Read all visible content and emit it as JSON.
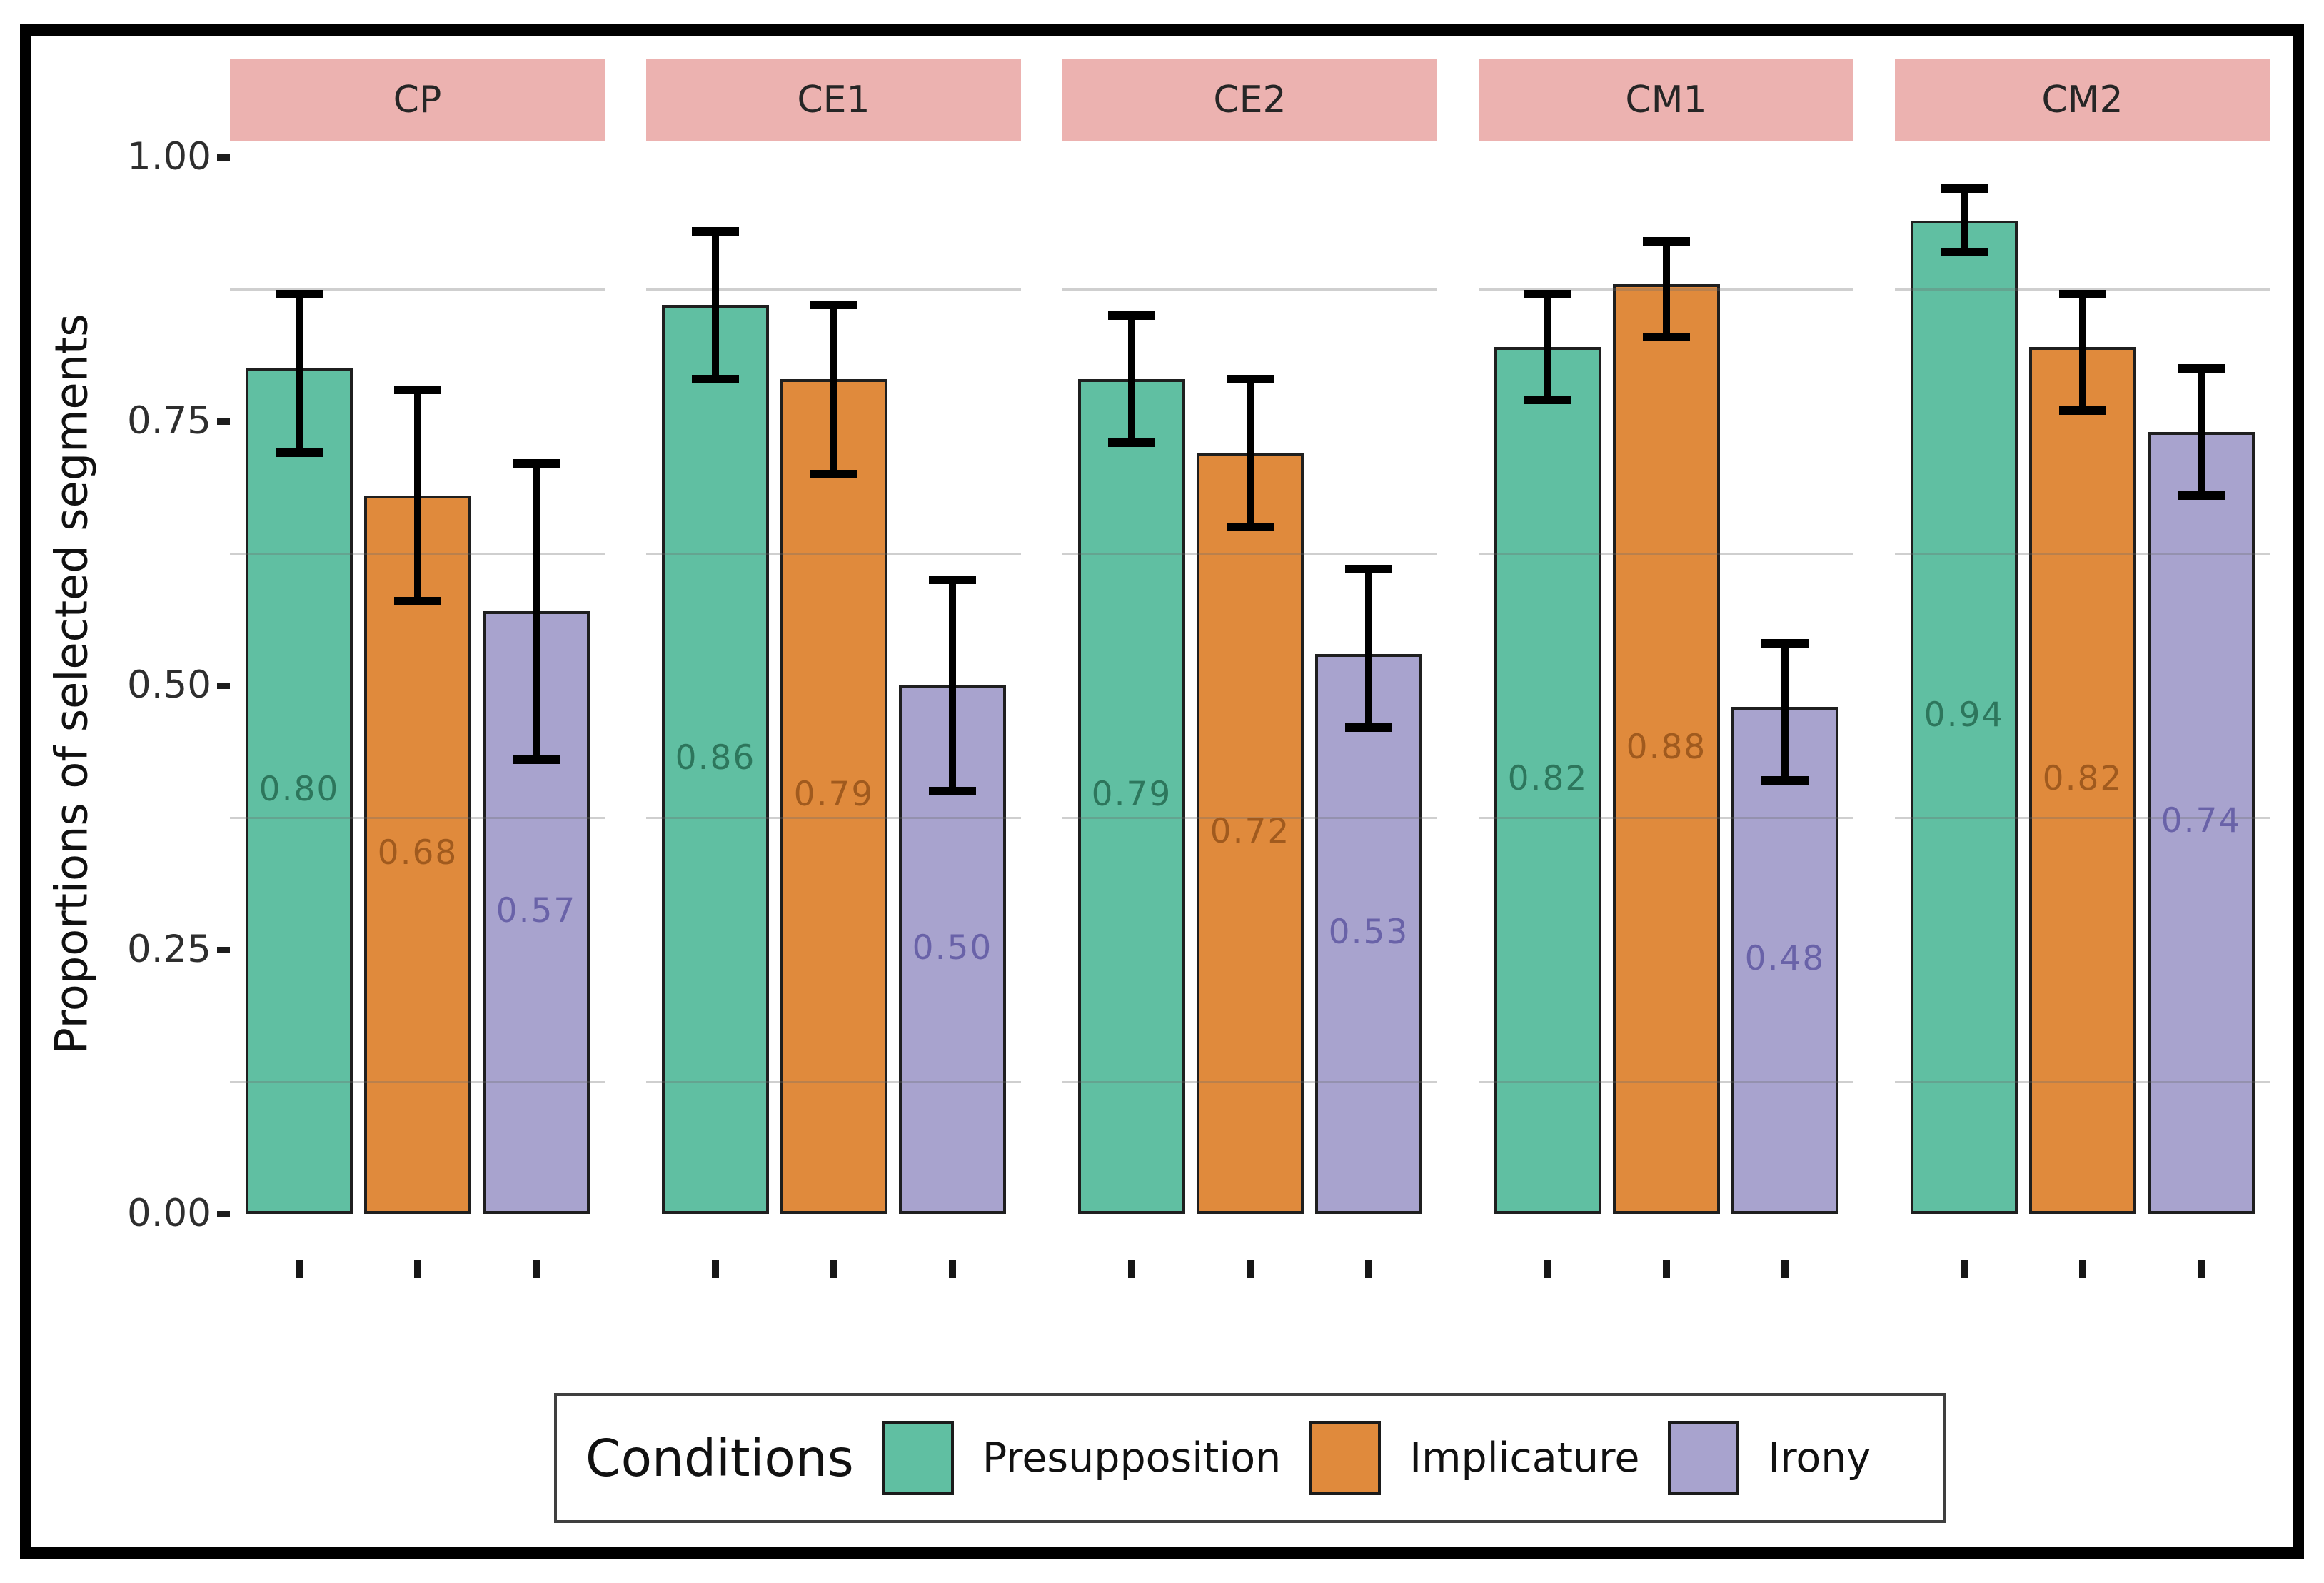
{
  "chart_data": {
    "type": "bar",
    "title": "",
    "ylabel": "Proportions of selected segments",
    "xlabel": "",
    "ylim": [
      0,
      1
    ],
    "grid": "minor-horizontal-only",
    "minor_gridlines": [
      0.125,
      0.375,
      0.625,
      0.875
    ],
    "ytick_values": [
      1.0,
      0.75,
      0.5,
      0.25,
      0.0
    ],
    "ytick_labels": [
      "1.00",
      "0.75",
      "0.50",
      "0.25",
      "0.00"
    ],
    "facet_strip_bg": "#ecb2b0",
    "legend": {
      "title": "Conditions",
      "position": "bottom",
      "entries": [
        "Presupposition",
        "Implicature",
        "Irony"
      ]
    },
    "series_meta": [
      {
        "name": "Presupposition",
        "color": "#60bfa2",
        "label_color": "#2d765c"
      },
      {
        "name": "Implicature",
        "color": "#e08a3c",
        "label_color": "#a05a1e"
      },
      {
        "name": "Irony",
        "color": "#a8a3ce",
        "label_color": "#6962a8"
      }
    ],
    "facets": [
      {
        "name": "CP",
        "bars": [
          {
            "series": "Presupposition",
            "value": 0.8,
            "label": "0.80",
            "ci_low": 0.72,
            "ci_high": 0.87
          },
          {
            "series": "Implicature",
            "value": 0.68,
            "label": "0.68",
            "ci_low": 0.58,
            "ci_high": 0.78
          },
          {
            "series": "Irony",
            "value": 0.57,
            "label": "0.57",
            "ci_low": 0.43,
            "ci_high": 0.71
          }
        ]
      },
      {
        "name": "CE1",
        "bars": [
          {
            "series": "Presupposition",
            "value": 0.86,
            "label": "0.86",
            "ci_low": 0.79,
            "ci_high": 0.93
          },
          {
            "series": "Implicature",
            "value": 0.79,
            "label": "0.79",
            "ci_low": 0.7,
            "ci_high": 0.86
          },
          {
            "series": "Irony",
            "value": 0.5,
            "label": "0.50",
            "ci_low": 0.4,
            "ci_high": 0.6
          }
        ]
      },
      {
        "name": "CE2",
        "bars": [
          {
            "series": "Presupposition",
            "value": 0.79,
            "label": "0.79",
            "ci_low": 0.73,
            "ci_high": 0.85
          },
          {
            "series": "Implicature",
            "value": 0.72,
            "label": "0.72",
            "ci_low": 0.65,
            "ci_high": 0.79
          },
          {
            "series": "Irony",
            "value": 0.53,
            "label": "0.53",
            "ci_low": 0.46,
            "ci_high": 0.61
          }
        ]
      },
      {
        "name": "CM1",
        "bars": [
          {
            "series": "Presupposition",
            "value": 0.82,
            "label": "0.82",
            "ci_low": 0.77,
            "ci_high": 0.87
          },
          {
            "series": "Implicature",
            "value": 0.88,
            "label": "0.88",
            "ci_low": 0.83,
            "ci_high": 0.92
          },
          {
            "series": "Irony",
            "value": 0.48,
            "label": "0.48",
            "ci_low": 0.41,
            "ci_high": 0.54
          }
        ]
      },
      {
        "name": "CM2",
        "bars": [
          {
            "series": "Presupposition",
            "value": 0.94,
            "label": "0.94",
            "ci_low": 0.91,
            "ci_high": 0.97
          },
          {
            "series": "Implicature",
            "value": 0.82,
            "label": "0.82",
            "ci_low": 0.76,
            "ci_high": 0.87
          },
          {
            "series": "Irony",
            "value": 0.74,
            "label": "0.74",
            "ci_low": 0.68,
            "ci_high": 0.8
          }
        ]
      }
    ]
  },
  "colors": {
    "frame": "#000000",
    "strip_bg": "#ecb2b0",
    "gridline": "rgba(110,110,110,0.33)",
    "bar_border": "#1f1f1f",
    "error_bar": "#000000",
    "tick": "#161616",
    "tick_label": "#2e2e2e",
    "axis_title": "#111111",
    "legend_border": "#3f3f3f"
  }
}
